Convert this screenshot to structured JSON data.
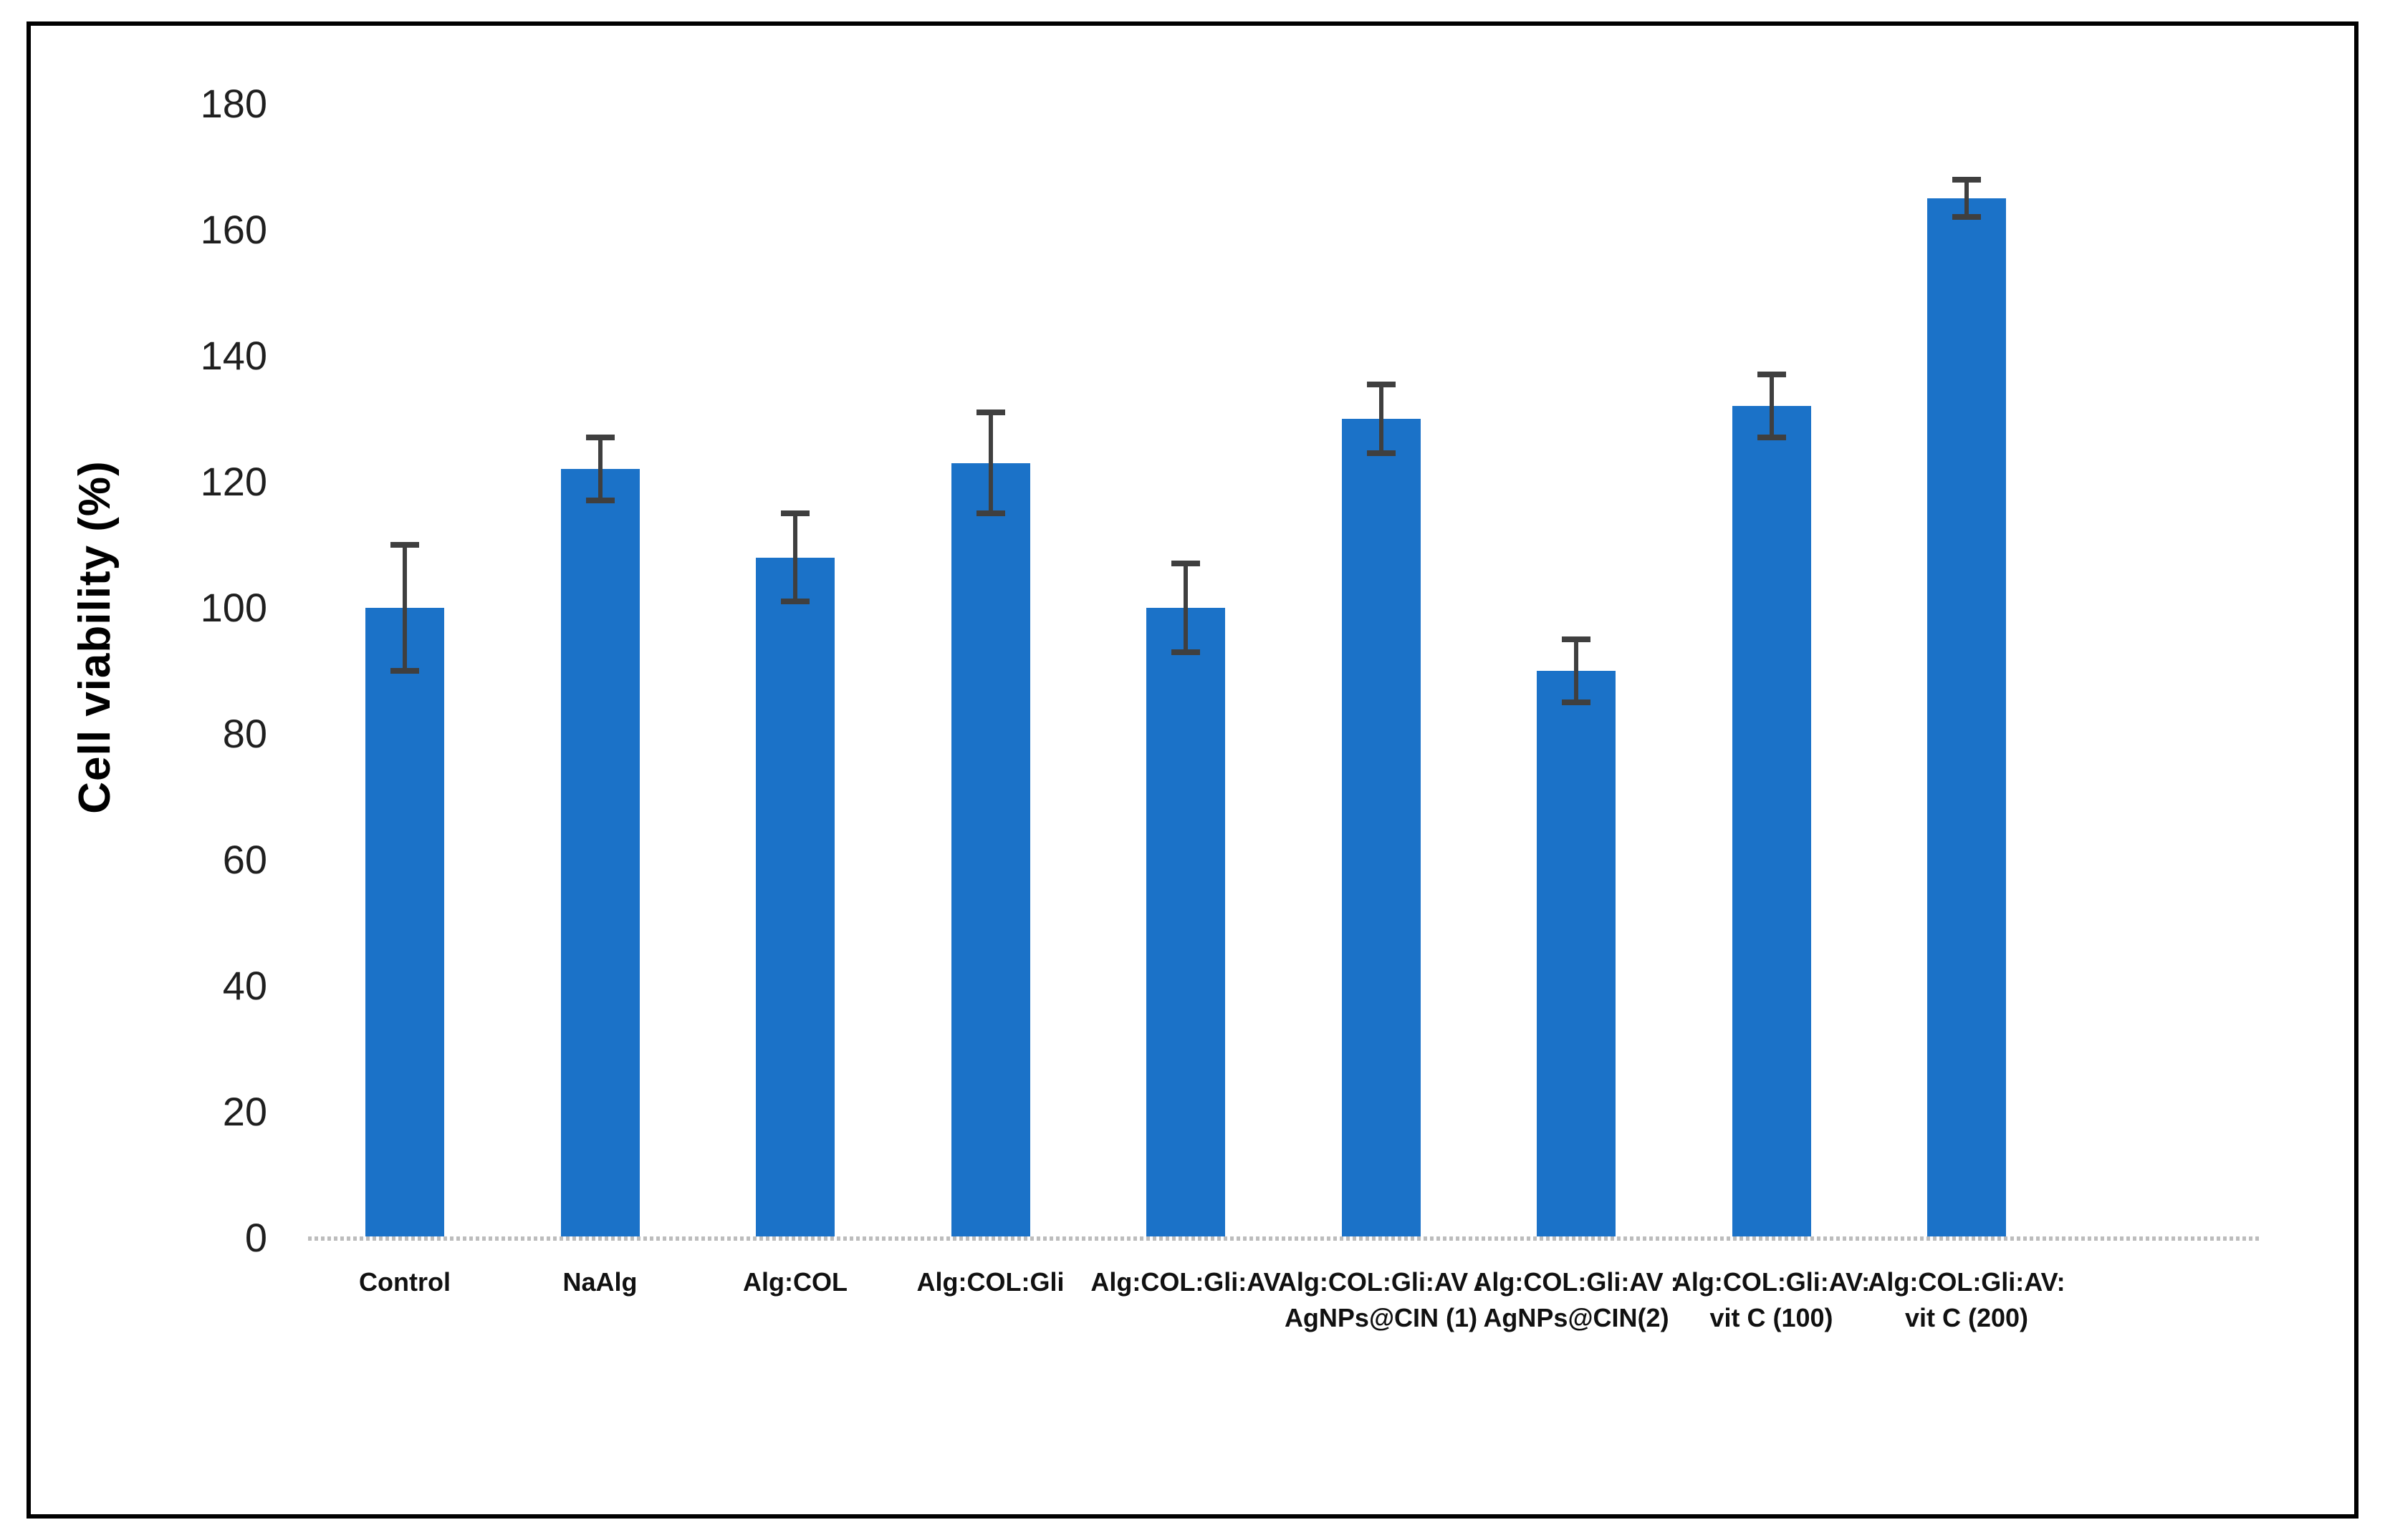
{
  "chart_data": {
    "type": "bar",
    "title": "",
    "xlabel": "",
    "ylabel": "Cell viability (%)",
    "ylim": [
      0,
      180
    ],
    "ytick_step": 20,
    "yticks": [
      "0",
      "20",
      "40",
      "60",
      "80",
      "100",
      "120",
      "140",
      "160",
      "180"
    ],
    "grid": false,
    "legend_position": "none",
    "categories": [
      "Control",
      "NaAlg",
      "Alg:COL",
      "Alg:COL:Gli",
      "Alg:COL:Gli:AV",
      "Alg:COL:Gli:AV : AgNPs@CIN (1)",
      "Alg:COL:Gli:AV : AgNPs@CIN(2)",
      "Alg:COL:Gli:AV: vit C (100)",
      "Alg:COL:Gli:AV: vit C (200)"
    ],
    "category_label_lines": [
      [
        "Control"
      ],
      [
        "NaAlg"
      ],
      [
        "Alg:COL"
      ],
      [
        "Alg:COL:Gli"
      ],
      [
        "Alg:COL:Gli:AV"
      ],
      [
        "Alg:COL:Gli:AV :",
        "AgNPs@CIN (1)"
      ],
      [
        "Alg:COL:Gli:AV :",
        "AgNPs@CIN(2)"
      ],
      [
        "Alg:COL:Gli:AV:",
        "vit C (100)"
      ],
      [
        "Alg:COL:Gli:AV:",
        "vit C (200)"
      ]
    ],
    "series": [
      {
        "name": "Cell viability (%)",
        "values": [
          100,
          122,
          108,
          123,
          100,
          130,
          90,
          132,
          165
        ],
        "errors": [
          10,
          5,
          7,
          8,
          7,
          5.5,
          5,
          5,
          3
        ]
      }
    ],
    "colors": {
      "bar": "#1b72c8",
      "error_bar": "#3f3f3f",
      "axis_line": "#bdbdbd",
      "tick_text": "#1f1f1f",
      "label_text": "#111111",
      "frame_border": "#000000",
      "background": "#ffffff"
    }
  }
}
